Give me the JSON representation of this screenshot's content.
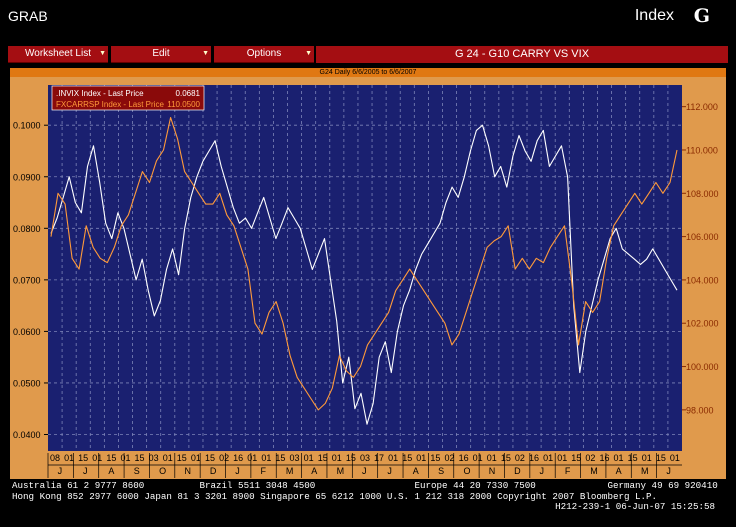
{
  "app": {
    "left_label": "GRAB",
    "right_label": "Index",
    "key_icon": "G"
  },
  "menu": {
    "worksheet_label": "Worksheet List",
    "edit_label": "Edit",
    "options_label": "Options",
    "chart_title": "G 24 - G10 CARRY VS VIX"
  },
  "range_text": "G24 Daily 6/6/2005 to 6/6/2007",
  "legend": [
    {
      "name": ".INVIX Index - Last Price",
      "value": "0.0681",
      "color": "#ffffff"
    },
    {
      "name": "FXCARRSP Index - Last Price",
      "value": "110.0500",
      "color": "#ff9a3a"
    }
  ],
  "footer": {
    "line1": "Australia 61 2 9777 8600          Brazil 5511 3048 4500                  Europe 44 20 7330 7500             Germany 49 69 920410",
    "line2": "Hong Kong 852 2977 6000 Japan 81 3 3201 8900 Singapore 65 6212 1000 U.S. 1 212 318 2000 Copyright 2007 Bloomberg L.P.",
    "line3": "H212-239-1 06-Jun-07 15:25:58"
  },
  "chart_data": {
    "type": "line",
    "title": "G 24 - G10 CARRY VS VIX",
    "left_axis": {
      "ticks": [
        "0.1000",
        "0.0900",
        "0.0800",
        "0.0700",
        "0.0600",
        "0.0500",
        "0.0400"
      ],
      "ylim": [
        0.0368,
        0.1078
      ]
    },
    "right_axis": {
      "ticks": [
        "112.000",
        "110.000",
        "108.000",
        "106.000",
        "104.000",
        "102.000",
        "100.000",
        "98.000"
      ],
      "ylim": [
        96.1,
        113.0
      ]
    },
    "x_day_labels": [
      "08",
      "01",
      "15",
      "01",
      "15",
      "01",
      "15",
      "03",
      "01",
      "15",
      "01",
      "15",
      "02",
      "16",
      "01",
      "01",
      "15",
      "03",
      "01",
      "15",
      "01",
      "15",
      "03",
      "17",
      "01",
      "15",
      "01",
      "15",
      "02",
      "16",
      "01",
      "01",
      "15",
      "02",
      "16",
      "01",
      "01",
      "15",
      "02",
      "16",
      "01",
      "15",
      "01",
      "15",
      "01"
    ],
    "x_month_labels": [
      "J",
      "J",
      "A",
      "S",
      "O",
      "N",
      "D",
      "J",
      "F",
      "M",
      "A",
      "M",
      "J",
      "J",
      "A",
      "S",
      "O",
      "N",
      "D",
      "J",
      "F",
      "M",
      "A",
      "M",
      "J"
    ],
    "series": [
      {
        "name": ".INVIX Index - Last Price",
        "axis": "left",
        "color": "#ffffff",
        "values": [
          0.079,
          0.082,
          0.086,
          0.09,
          0.085,
          0.083,
          0.092,
          0.096,
          0.089,
          0.081,
          0.078,
          0.083,
          0.08,
          0.075,
          0.07,
          0.074,
          0.068,
          0.063,
          0.066,
          0.072,
          0.076,
          0.071,
          0.08,
          0.086,
          0.09,
          0.093,
          0.095,
          0.097,
          0.092,
          0.088,
          0.084,
          0.081,
          0.082,
          0.08,
          0.083,
          0.086,
          0.082,
          0.078,
          0.081,
          0.084,
          0.082,
          0.08,
          0.076,
          0.072,
          0.075,
          0.078,
          0.07,
          0.062,
          0.05,
          0.055,
          0.045,
          0.048,
          0.042,
          0.046,
          0.055,
          0.058,
          0.052,
          0.06,
          0.065,
          0.068,
          0.072,
          0.075,
          0.077,
          0.079,
          0.081,
          0.085,
          0.088,
          0.086,
          0.09,
          0.095,
          0.099,
          0.1,
          0.096,
          0.09,
          0.092,
          0.088,
          0.094,
          0.098,
          0.095,
          0.093,
          0.097,
          0.099,
          0.092,
          0.094,
          0.096,
          0.09,
          0.065,
          0.052,
          0.06,
          0.065,
          0.07,
          0.074,
          0.078,
          0.08,
          0.076,
          0.075,
          0.074,
          0.073,
          0.074,
          0.076,
          0.074,
          0.072,
          0.07,
          0.068
        ]
      },
      {
        "name": "FXCARRSP Index - Last Price",
        "axis": "right",
        "color": "#ff9a3a",
        "values": [
          106.0,
          108.0,
          107.5,
          105.0,
          104.5,
          106.5,
          105.5,
          105.0,
          104.8,
          105.5,
          106.5,
          107.0,
          108.0,
          109.0,
          108.5,
          109.5,
          110.0,
          111.5,
          110.5,
          109.0,
          108.5,
          108.0,
          107.5,
          107.5,
          108.0,
          107.0,
          106.5,
          105.5,
          104.5,
          102.0,
          101.5,
          102.5,
          103.0,
          102.0,
          100.5,
          99.5,
          99.0,
          98.5,
          98.0,
          98.3,
          99.0,
          100.5,
          99.8,
          99.5,
          100.0,
          101.0,
          101.5,
          102.0,
          102.5,
          103.5,
          104.0,
          104.5,
          104.0,
          103.5,
          103.0,
          102.5,
          102.0,
          101.0,
          101.5,
          102.5,
          103.5,
          104.5,
          105.5,
          105.8,
          106.0,
          106.5,
          104.5,
          105.0,
          104.5,
          105.0,
          104.8,
          105.5,
          106.0,
          106.5,
          104.0,
          101.0,
          103.0,
          102.5,
          103.0,
          105.0,
          106.5,
          107.0,
          107.5,
          108.0,
          107.5,
          108.0,
          108.5,
          108.0,
          108.5,
          110.0
        ]
      }
    ]
  }
}
